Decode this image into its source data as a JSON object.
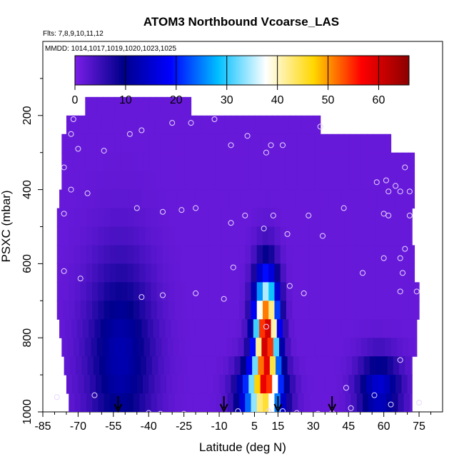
{
  "chart_data": {
    "type": "heatmap",
    "title": "ATOM3 Northbound Vcoarse_LAS",
    "flights_label": "Flts: 7,8,9,10,11,12",
    "dates_label": "MMDD: 1014,1017,1019,1020,1023,1025",
    "xlabel": "Latitude (deg N)",
    "ylabel": "PSXC (mbar)",
    "xlim": [
      -85,
      85
    ],
    "ylim": [
      1000,
      0
    ],
    "x_ticks": [
      -85,
      -70,
      -55,
      -40,
      -25,
      -10,
      5,
      15,
      30,
      45,
      60,
      75
    ],
    "y_ticks": [
      200,
      400,
      600,
      800,
      1000
    ],
    "colorbar": {
      "min": 0,
      "max": 66,
      "ticks": [
        0,
        10,
        20,
        30,
        40,
        50,
        60
      ],
      "colors": [
        "#7b1ee8",
        "#00008b",
        "#0000ff",
        "#00bfff",
        "#ffffff",
        "#ffd700",
        "#ff0000",
        "#8b0000"
      ]
    },
    "pressure_levels": [
      175,
      225,
      275,
      325,
      375,
      425,
      475,
      525,
      575,
      625,
      675,
      725,
      775,
      825,
      875,
      925,
      975
    ],
    "field_peaks": [
      {
        "lat": -52,
        "pressure": 850,
        "value": 11,
        "lat_width": 14,
        "p_width": 260
      },
      {
        "lat": 10,
        "pressure": 790,
        "value": 60,
        "lat_width": 5,
        "p_width": 150
      },
      {
        "lat": 8,
        "pressure": 950,
        "value": 35,
        "lat_width": 9,
        "p_width": 80
      },
      {
        "lat": 58,
        "pressure": 940,
        "value": 14,
        "lat_width": 9,
        "p_width": 90
      }
    ],
    "sample_points": [
      {
        "lat": -72,
        "p": 210
      },
      {
        "lat": -73,
        "p": 250
      },
      {
        "lat": -76,
        "p": 340
      },
      {
        "lat": -70,
        "p": 290
      },
      {
        "lat": -66,
        "p": 410
      },
      {
        "lat": -73,
        "p": 400
      },
      {
        "lat": -76,
        "p": 465
      },
      {
        "lat": -59,
        "p": 295
      },
      {
        "lat": -48,
        "p": 250
      },
      {
        "lat": -43,
        "p": 240
      },
      {
        "lat": -30,
        "p": 220
      },
      {
        "lat": -22,
        "p": 220
      },
      {
        "lat": -12,
        "p": 210
      },
      {
        "lat": -45,
        "p": 450
      },
      {
        "lat": -34,
        "p": 460
      },
      {
        "lat": -26,
        "p": 455
      },
      {
        "lat": -20,
        "p": 450
      },
      {
        "lat": -76,
        "p": 620
      },
      {
        "lat": -69,
        "p": 640
      },
      {
        "lat": -43,
        "p": 690
      },
      {
        "lat": -34,
        "p": 685
      },
      {
        "lat": -20,
        "p": 680
      },
      {
        "lat": -8,
        "p": 695
      },
      {
        "lat": -5,
        "p": 280
      },
      {
        "lat": 2,
        "p": 255
      },
      {
        "lat": -5,
        "p": 490
      },
      {
        "lat": 1,
        "p": 470
      },
      {
        "lat": -4,
        "p": 610
      },
      {
        "lat": 10,
        "p": 300
      },
      {
        "lat": 12,
        "p": 280
      },
      {
        "lat": 17,
        "p": 280
      },
      {
        "lat": 9,
        "p": 505
      },
      {
        "lat": 13,
        "p": 470
      },
      {
        "lat": 19,
        "p": 520
      },
      {
        "lat": 28,
        "p": 470
      },
      {
        "lat": 34,
        "p": 525
      },
      {
        "lat": 33,
        "p": 230
      },
      {
        "lat": 43,
        "p": 450
      },
      {
        "lat": 26,
        "p": 680
      },
      {
        "lat": 20,
        "p": 660
      },
      {
        "lat": 10,
        "p": 770
      },
      {
        "lat": 57,
        "p": 380
      },
      {
        "lat": 61,
        "p": 375
      },
      {
        "lat": 65,
        "p": 390
      },
      {
        "lat": 62,
        "p": 405
      },
      {
        "lat": 67,
        "p": 405
      },
      {
        "lat": 71,
        "p": 405
      },
      {
        "lat": 69,
        "p": 340
      },
      {
        "lat": 60,
        "p": 465
      },
      {
        "lat": 62,
        "p": 470
      },
      {
        "lat": 71,
        "p": 470
      },
      {
        "lat": 69,
        "p": 560
      },
      {
        "lat": 67,
        "p": 585
      },
      {
        "lat": 60,
        "p": 585
      },
      {
        "lat": 68,
        "p": 625
      },
      {
        "lat": 67,
        "p": 675
      },
      {
        "lat": 74,
        "p": 675
      },
      {
        "lat": 51,
        "p": 625
      },
      {
        "lat": 67,
        "p": 860
      },
      {
        "lat": 44,
        "p": 935
      },
      {
        "lat": 56,
        "p": 955
      },
      {
        "lat": 63,
        "p": 980
      },
      {
        "lat": 75,
        "p": 975
      },
      {
        "lat": 46,
        "p": 990
      },
      {
        "lat": -79,
        "p": 960
      },
      {
        "lat": -63,
        "p": 955
      },
      {
        "lat": -40,
        "p": 1003
      },
      {
        "lat": -35,
        "p": 1005
      },
      {
        "lat": -25,
        "p": 1005
      },
      {
        "lat": -2,
        "p": 998
      },
      {
        "lat": 11,
        "p": 998
      },
      {
        "lat": 17,
        "p": 998
      },
      {
        "lat": 23,
        "p": 1003
      },
      {
        "lat": 32,
        "p": 1005
      },
      {
        "lat": 38,
        "p": 1003
      }
    ],
    "flight_markers_lat": [
      -53,
      -8,
      15,
      38
    ]
  }
}
